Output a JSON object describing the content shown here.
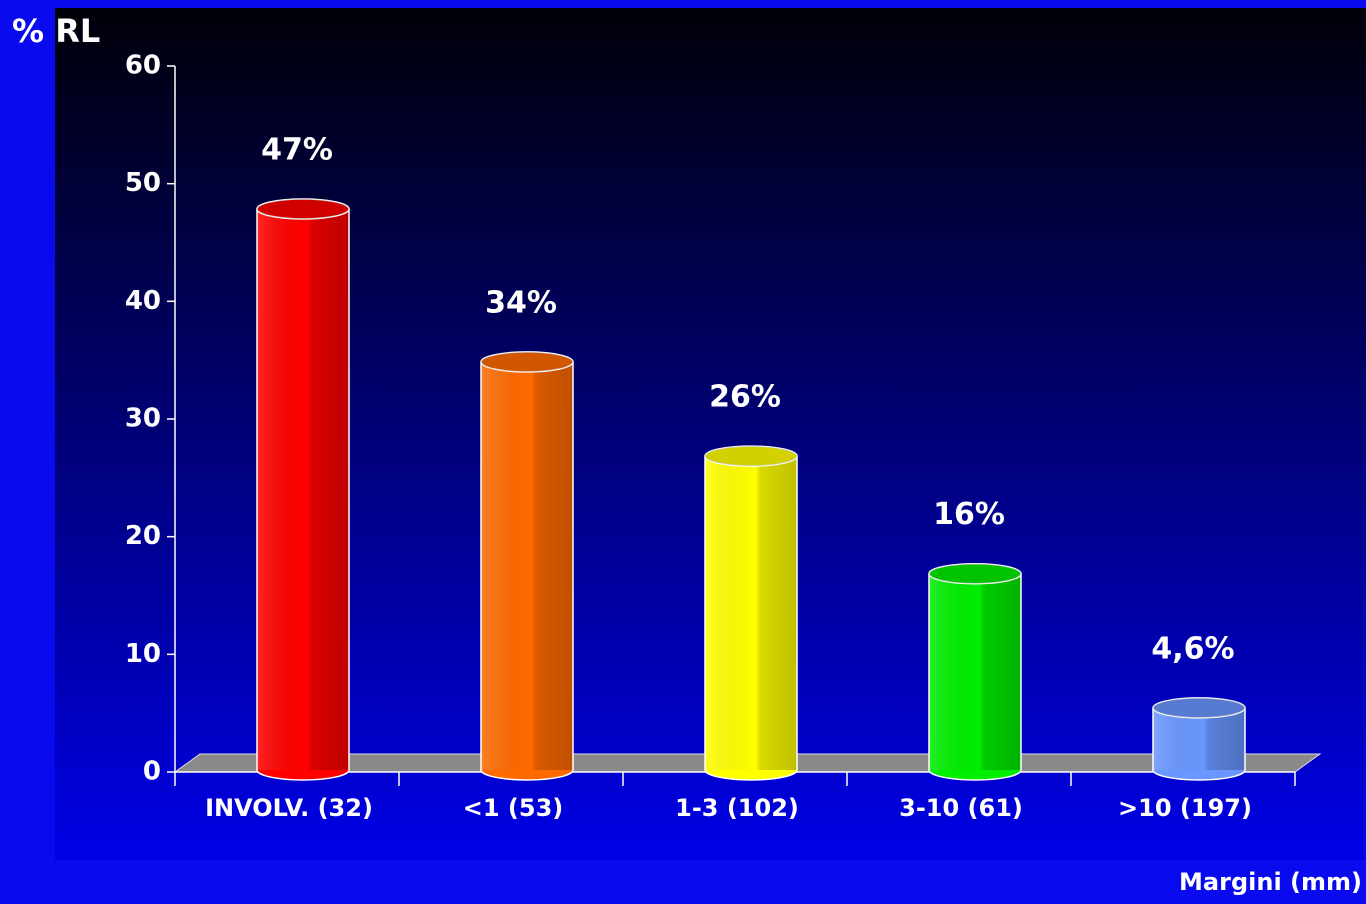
{
  "chart_data": {
    "type": "bar",
    "y_label": "% RL",
    "x_label": "Margini (mm)",
    "categories": [
      "INVOLV. (32)",
      "<1 (53)",
      "1-3 (102)",
      "3-10 (61)",
      ">10 (197)"
    ],
    "values": [
      47,
      34,
      26,
      16,
      4.6
    ],
    "value_labels": [
      "47%",
      "34%",
      "26%",
      "16%",
      "4,6%"
    ],
    "colors": [
      "#ff0000",
      "#ff6a00",
      "#ffff00",
      "#00ee00",
      "#6a96ff"
    ],
    "ylim": [
      0,
      60
    ],
    "yticks": [
      0,
      10,
      20,
      30,
      40,
      50,
      60
    ]
  }
}
